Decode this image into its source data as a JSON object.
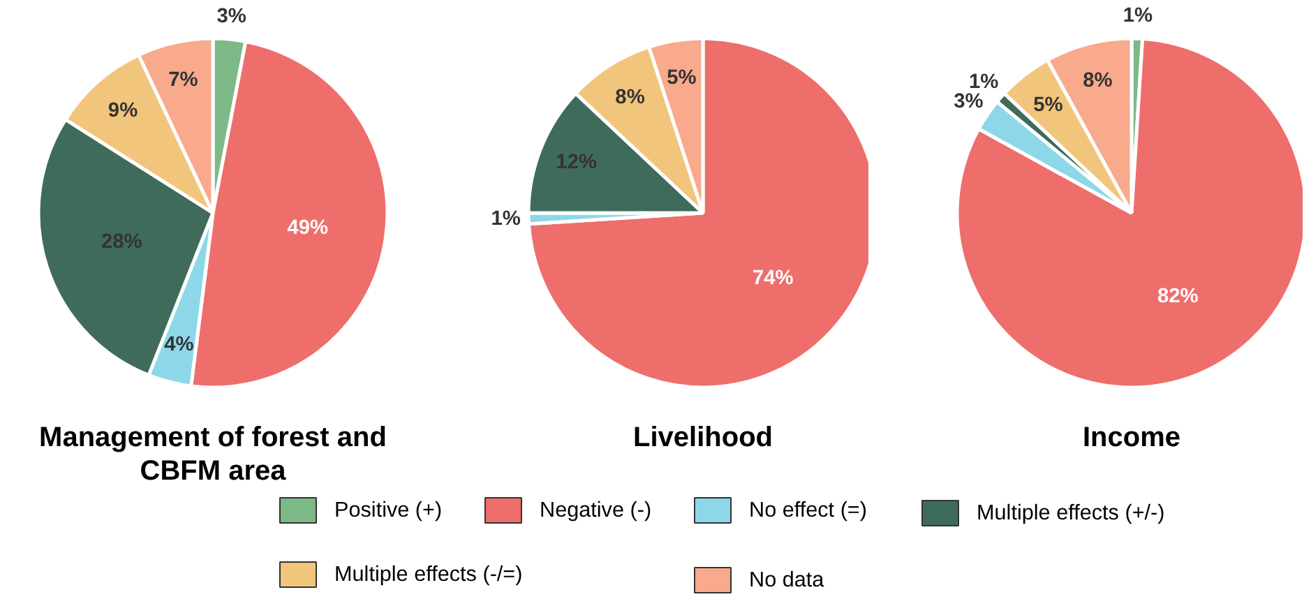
{
  "chart_data": [
    {
      "type": "pie",
      "title": "Management of forest and CBFM area",
      "categories": [
        "Positive (+)",
        "Negative (-)",
        "No effect (=)",
        "Multiple effects (+/-)",
        "Multiple effects (-/=)",
        "No data"
      ],
      "values": [
        3,
        49,
        4,
        28,
        9,
        7
      ],
      "value_labels": [
        "3%",
        "49%",
        "4%",
        "28%",
        "9%",
        "7%"
      ],
      "colors": [
        "#7db987",
        "#ee6e6c",
        "#8cd8e8",
        "#3f6b5a",
        "#f2c57c",
        "#f9a98c"
      ],
      "legend": "bottom"
    },
    {
      "type": "pie",
      "title": "Livelihood",
      "categories": [
        null,
        null,
        null,
        null,
        null,
        null
      ],
      "values": [
        0,
        74,
        1,
        12,
        8,
        5
      ],
      "value_labels": [
        null,
        "74%",
        "1%",
        "12%",
        "8%",
        "5%"
      ],
      "colors": [
        "#7db987",
        "#ee6e6c",
        "#8cd8e8",
        "#3f6b5a",
        "#f2c57c",
        "#f9a98c"
      ]
    },
    {
      "type": "pie",
      "title": "Income",
      "categories": [
        null,
        null,
        null,
        null,
        null,
        null
      ],
      "values": [
        1,
        82,
        3,
        1,
        5,
        8
      ],
      "value_labels": [
        "1%",
        "82%",
        "3%",
        "1%",
        "5%",
        "8%"
      ],
      "colors": [
        "#7db987",
        "#ee6e6c",
        "#8cd8e8",
        "#3f6b5a",
        "#f2c57c",
        "#f9a98c"
      ]
    }
  ]
}
